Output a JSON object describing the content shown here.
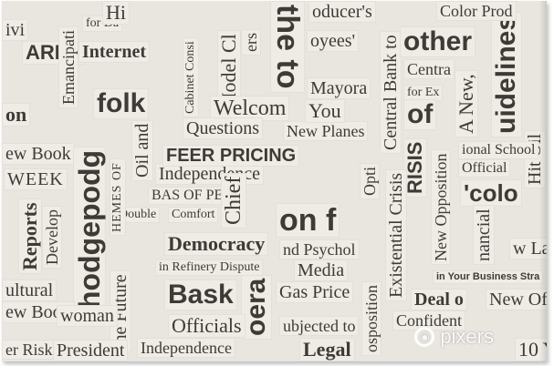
{
  "clippings": {
    "c01": "ivi",
    "c02": "ARKF",
    "c03": "Emancipati",
    "c04": "Internet",
    "c05": "for Da",
    "c06": "Cabinet Consi",
    "c07": "Model Cl",
    "c08": "Welcom",
    "c09": "the to",
    "c10": "ers",
    "c11": "oducer's",
    "c12": "oyees'",
    "c13": "Mayora",
    "c14": "Central Bank to",
    "c15": "other",
    "c16": "Centra",
    "c17": "for Ex",
    "c18": "A New,",
    "c19": "uidelines",
    "c20": "Color Prod",
    "c21": "folk",
    "c22": "on",
    "c23": "Questions",
    "c24": "New Planes",
    "c25": "You",
    "c26": "of",
    "c27": "ew Book",
    "c28": "WEEK",
    "c29": "Oil and",
    "c30": "Independence",
    "c31": "FEER PRICING",
    "c32": "RISIS",
    "c33": "Hit Oil",
    "c34": "ional School",
    "c35": "Official",
    "c36": "hodgepodg",
    "c37": "BAS OF PEAC",
    "c38": "Opti",
    "c39": "'colo",
    "c40": "Reports",
    "c41": "Develop",
    "c42": "Double",
    "c43": "Comfort",
    "c44": "Chief",
    "c45": "on f",
    "c46": "Existential Crisis",
    "c47": "New Opposition",
    "c48": "nancial",
    "c49": "w Lav",
    "c50": "Democracy",
    "c51": "nd Psychol",
    "c52": "in Refinery Dispute",
    "c53": "Media",
    "c54": "in Your Business Stra",
    "c55": "ultural",
    "c56": "ew Book",
    "c57": "Bask",
    "c58": "oera",
    "c59": "Gas Price",
    "c60": "Deal o",
    "c61": "New Of",
    "c62": "woman",
    "c63": "Officials",
    "c64": "Independence",
    "c65": "ubjected to",
    "c66": "Legal",
    "c67": "osposition",
    "c68": "Confident",
    "c69": "er Risk",
    "c70": "President",
    "c71": "10 Y",
    "c72": "the Future",
    "c73": "HEMES OF",
    "c74": "Hi"
  },
  "watermark": {
    "text": "pixers",
    "icon": "pixers-logo-icon"
  },
  "colors": {
    "paper": "#e9e6e0",
    "ink": "#3e3a36"
  }
}
